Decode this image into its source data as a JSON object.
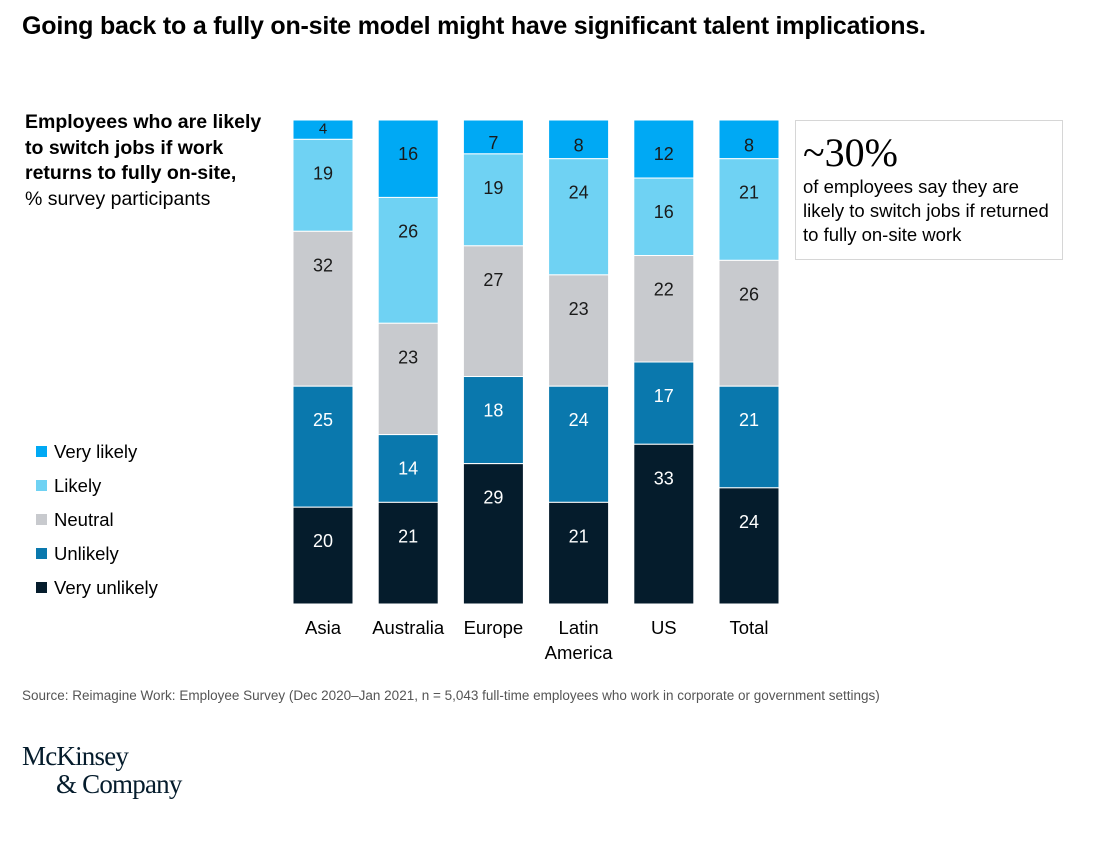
{
  "title": "Going back to a fully on-site model might have significant talent implications.",
  "y_label": {
    "bold": "Employees who are likely to switch jobs if work returns to fully on-site,",
    "normal": "% survey participants"
  },
  "callout": {
    "big": "~30%",
    "text": "of employees say they are likely to switch jobs if returned to fully on-site work"
  },
  "source": "Source: Reimagine Work: Employee Survey (Dec 2020–Jan 2021, n = 5,043 full-time employees who work in corporate or government settings)",
  "logo": {
    "line1": "McKinsey",
    "line2": "& Company"
  },
  "chart_data": {
    "type": "bar",
    "stacked": true,
    "categories": [
      "Asia",
      "Australia",
      "Europe",
      "Latin America",
      "US",
      "Total"
    ],
    "category_lines": [
      [
        "Asia"
      ],
      [
        "Australia"
      ],
      [
        "Europe"
      ],
      [
        "Latin",
        "America"
      ],
      [
        "US"
      ],
      [
        "Total"
      ]
    ],
    "series": [
      {
        "name": "Very likely",
        "color": "#00a9f4",
        "values": [
          4,
          16,
          7,
          8,
          12,
          8
        ]
      },
      {
        "name": "Likely",
        "color": "#6fd2f3",
        "values": [
          19,
          26,
          19,
          24,
          16,
          21
        ]
      },
      {
        "name": "Neutral",
        "color": "#c8cace",
        "values": [
          32,
          23,
          27,
          23,
          22,
          26
        ]
      },
      {
        "name": "Unlikely",
        "color": "#0a78ad",
        "values": [
          25,
          14,
          18,
          24,
          17,
          21
        ]
      },
      {
        "name": "Very unlikely",
        "color": "#051c2c",
        "values": [
          20,
          21,
          29,
          21,
          33,
          24
        ]
      }
    ],
    "stack_order": "Very likely on top, Very unlikely at bottom",
    "ylim": [
      0,
      100
    ],
    "grid": false,
    "legend_position": "left"
  }
}
